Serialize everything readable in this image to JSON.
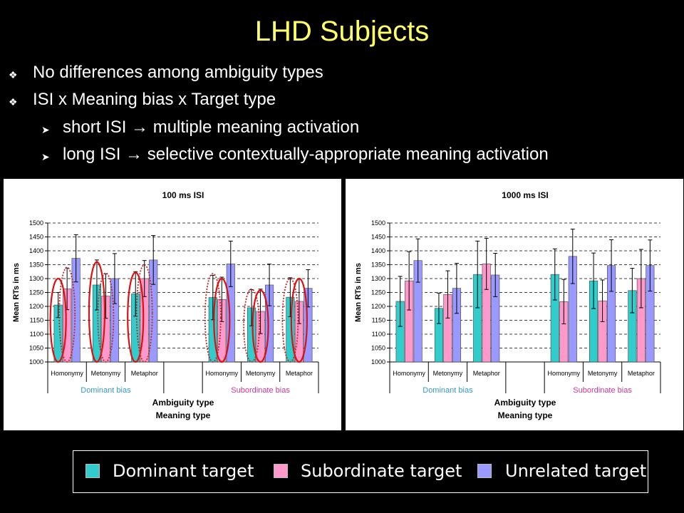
{
  "slide": {
    "title": "LHD Subjects",
    "bullets": [
      {
        "text": "No differences among ambiguity types",
        "level": 1
      },
      {
        "text": "ISI x Meaning bias x Target type",
        "level": 1
      },
      {
        "text": "short ISI → multiple meaning activation",
        "level": 2
      },
      {
        "text": "long ISI → selective contextually-appropriate meaning activation",
        "level": 2
      }
    ]
  },
  "legend": {
    "items": [
      {
        "label": "Dominant target",
        "color": "#33cccc"
      },
      {
        "label": "Subordinate target",
        "color": "#ff99cc"
      },
      {
        "label": "Unrelated target",
        "color": "#9999ff"
      }
    ]
  },
  "chart_data": [
    {
      "type": "bar",
      "title": "100 ms ISI",
      "ylabel": "Mean RTs in ms",
      "xlabel": "Ambiguity type",
      "xlabel2": "Meaning type",
      "ylim": [
        1000,
        1500
      ],
      "yticks": [
        1000,
        1050,
        1100,
        1150,
        1200,
        1250,
        1300,
        1350,
        1400,
        1450,
        1500
      ],
      "grid": true,
      "groups": [
        {
          "label": "Dominant bias",
          "color": "#3399cc",
          "categories": [
            "Homonymy",
            "Metonymy",
            "Metaphor"
          ]
        },
        {
          "label": "Subordinate bias",
          "color": "#cc3399",
          "categories": [
            "Homonymy",
            "Metonymy",
            "Metaphor"
          ]
        }
      ],
      "categories": [
        "Homonymy",
        "Metonymy",
        "Metaphor",
        "",
        "Homonymy",
        "Metonymy",
        "Metaphor"
      ],
      "series": [
        {
          "color": "#33cccc",
          "values": [
            1205,
            1277,
            1245,
            null,
            1232,
            1195,
            1233
          ],
          "errors": [
            45,
            90,
            80,
            null,
            80,
            65,
            70
          ]
        },
        {
          "color": "#ff99cc",
          "values": [
            1263,
            1237,
            1300,
            null,
            1225,
            1182,
            1218
          ],
          "errors": [
            75,
            80,
            65,
            null,
            80,
            80,
            80
          ]
        },
        {
          "color": "#9999ff",
          "values": [
            1373,
            1300,
            1367,
            null,
            1353,
            1277,
            1265
          ],
          "errors": [
            85,
            90,
            88,
            null,
            82,
            75,
            67
          ]
        }
      ],
      "annotations": [
        {
          "style": "solid",
          "cat": 0,
          "bars": [
            0
          ],
          "top": 1300,
          "bottom": 1000
        },
        {
          "style": "dotted",
          "cat": 0,
          "bars": [
            1
          ],
          "top": 1340,
          "bottom": 1000
        },
        {
          "style": "solid",
          "cat": 1,
          "bars": [
            0
          ],
          "top": 1360,
          "bottom": 1000
        },
        {
          "style": "dotted",
          "cat": 1,
          "bars": [
            1
          ],
          "top": 1320,
          "bottom": 1000
        },
        {
          "style": "solid",
          "cat": 2,
          "bars": [
            0
          ],
          "top": 1322,
          "bottom": 1000
        },
        {
          "style": "dotted",
          "cat": 2,
          "bars": [
            1
          ],
          "top": 1350,
          "bottom": 1000
        },
        {
          "style": "dotted",
          "cat": 4,
          "bars": [
            0
          ],
          "top": 1318,
          "bottom": 1000
        },
        {
          "style": "solid",
          "cat": 4,
          "bars": [
            1
          ],
          "top": 1300,
          "bottom": 1000
        },
        {
          "style": "dotted",
          "cat": 5,
          "bars": [
            0
          ],
          "top": 1262,
          "bottom": 1000
        },
        {
          "style": "solid",
          "cat": 5,
          "bars": [
            1
          ],
          "top": 1258,
          "bottom": 1000
        },
        {
          "style": "dotted",
          "cat": 6,
          "bars": [
            0
          ],
          "top": 1300,
          "bottom": 1000
        },
        {
          "style": "solid",
          "cat": 6,
          "bars": [
            1
          ],
          "top": 1300,
          "bottom": 1000
        }
      ]
    },
    {
      "type": "bar",
      "title": "1000 ms ISI",
      "ylabel": "Mean RTs in ms",
      "xlabel": "Ambiguity type",
      "xlabel2": "Meaning type",
      "ylim": [
        1000,
        1500
      ],
      "yticks": [
        1000,
        1050,
        1100,
        1150,
        1200,
        1250,
        1300,
        1350,
        1400,
        1450,
        1500
      ],
      "grid": true,
      "groups": [
        {
          "label": "Dominant bias",
          "color": "#3399cc",
          "categories": [
            "Homonymy",
            "Metonymy",
            "Metaphor"
          ]
        },
        {
          "label": "Subordinate bias",
          "color": "#cc3399",
          "categories": [
            "Homonymy",
            "Metonymy",
            "Metaphor"
          ]
        }
      ],
      "categories": [
        "Homonymy",
        "Metonymy",
        "Metaphor",
        "",
        "Homonymy",
        "Metonymy",
        "Metaphor"
      ],
      "series": [
        {
          "color": "#33cccc",
          "values": [
            1218,
            1193,
            1315,
            null,
            1315,
            1292,
            1257
          ],
          "errors": [
            90,
            55,
            120,
            null,
            92,
            100,
            80
          ]
        },
        {
          "color": "#ff99cc",
          "values": [
            1292,
            1243,
            1353,
            null,
            1217,
            1220,
            1300
          ],
          "errors": [
            105,
            85,
            92,
            null,
            80,
            75,
            105
          ]
        },
        {
          "color": "#9999ff",
          "values": [
            1365,
            1265,
            1313,
            null,
            1380,
            1347,
            1347
          ],
          "errors": [
            78,
            90,
            78,
            null,
            98,
            93,
            92
          ]
        }
      ],
      "annotations": []
    }
  ]
}
